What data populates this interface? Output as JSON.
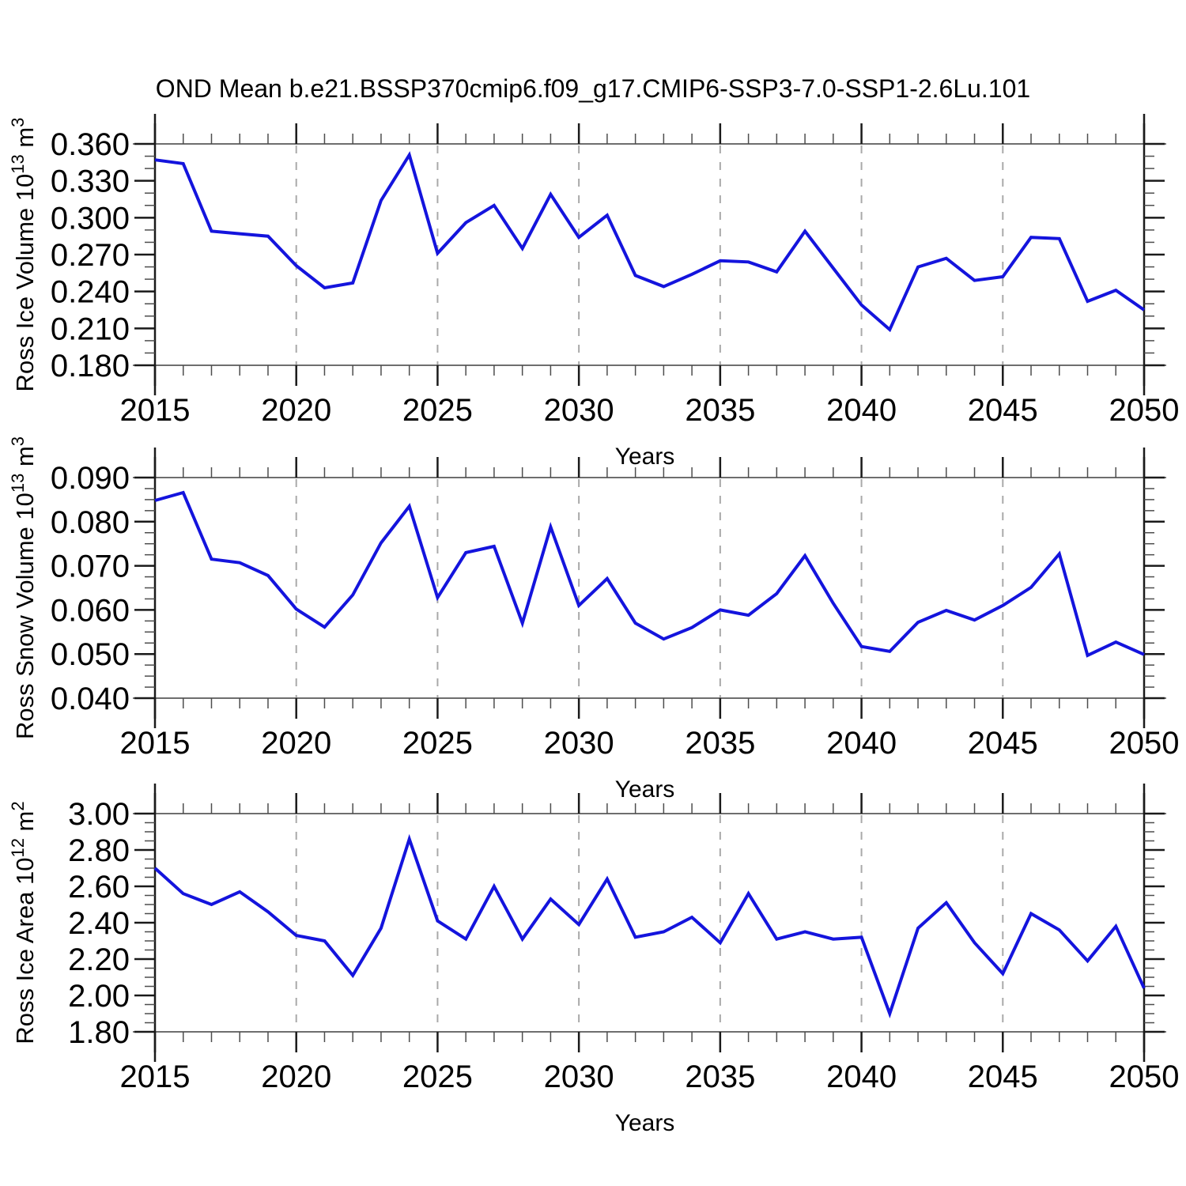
{
  "figure": {
    "title": "OND Mean b.e21.BSSP370cmip6.f09_g17.CMIP6-SSP3-7.0-SSP1-2.6Lu.101"
  },
  "colors": {
    "line": "#1414dd",
    "grid": "#a9a9a9",
    "border": "#6e6e6e",
    "axis": "#1a1a1a",
    "minor_tick": "#4d4d4d",
    "text": "#000000",
    "background": "#ffffff"
  },
  "chart_data": [
    {
      "type": "line",
      "id": "ross-ice-volume",
      "ylabel": "Ross Ice Volume 10¹³ m³",
      "ylabel_parts": [
        {
          "t": "Ross Ice Volume 10"
        },
        {
          "t": "13",
          "sup": true
        },
        {
          "t": " m"
        },
        {
          "t": "3",
          "sup": true
        }
      ],
      "xlabel": "Years",
      "xlim": [
        2015,
        2050
      ],
      "ylim": [
        0.18,
        0.36
      ],
      "ytick_values": [
        0.18,
        0.21,
        0.24,
        0.27,
        0.3,
        0.33,
        0.36
      ],
      "ytick_labels": [
        "0.180",
        "0.210",
        "0.240",
        "0.270",
        "0.300",
        "0.330",
        "0.360"
      ],
      "yminor_step": 0.01,
      "xtick_values": [
        2015,
        2020,
        2025,
        2030,
        2035,
        2040,
        2045,
        2050
      ],
      "xtick_labels": [
        "2015",
        "2020",
        "2025",
        "2030",
        "2035",
        "2040",
        "2045",
        "2050"
      ],
      "xminor_step": 1,
      "grid_years": [
        2020,
        2025,
        2030,
        2035,
        2040,
        2045
      ],
      "x": [
        2015,
        2016,
        2017,
        2018,
        2019,
        2020,
        2021,
        2022,
        2023,
        2024,
        2025,
        2026,
        2027,
        2028,
        2029,
        2030,
        2031,
        2032,
        2033,
        2034,
        2035,
        2036,
        2037,
        2038,
        2039,
        2040,
        2041,
        2042,
        2043,
        2044,
        2045,
        2046,
        2047,
        2048,
        2049,
        2050
      ],
      "values": [
        0.347,
        0.344,
        0.289,
        0.287,
        0.285,
        0.261,
        0.243,
        0.247,
        0.314,
        0.351,
        0.271,
        0.296,
        0.31,
        0.275,
        0.319,
        0.284,
        0.302,
        0.253,
        0.244,
        0.254,
        0.265,
        0.264,
        0.256,
        0.289,
        0.259,
        0.229,
        0.209,
        0.26,
        0.267,
        0.249,
        0.252,
        0.284,
        0.283,
        0.232,
        0.241,
        0.225
      ]
    },
    {
      "type": "line",
      "id": "ross-snow-volume",
      "ylabel": "Ross Snow Volume 10¹³ m³",
      "ylabel_parts": [
        {
          "t": "Ross Snow Volume 10"
        },
        {
          "t": "13",
          "sup": true
        },
        {
          "t": " m"
        },
        {
          "t": "3",
          "sup": true
        }
      ],
      "xlabel": "Years",
      "xlim": [
        2015,
        2050
      ],
      "ylim": [
        0.04,
        0.09
      ],
      "ytick_values": [
        0.04,
        0.05,
        0.06,
        0.07,
        0.08,
        0.09
      ],
      "ytick_labels": [
        "0.040",
        "0.050",
        "0.060",
        "0.070",
        "0.080",
        "0.090"
      ],
      "yminor_step": 0.0025,
      "xtick_values": [
        2015,
        2020,
        2025,
        2030,
        2035,
        2040,
        2045,
        2050
      ],
      "xtick_labels": [
        "2015",
        "2020",
        "2025",
        "2030",
        "2035",
        "2040",
        "2045",
        "2050"
      ],
      "xminor_step": 1,
      "grid_years": [
        2020,
        2025,
        2030,
        2035,
        2040,
        2045
      ],
      "x": [
        2015,
        2016,
        2017,
        2018,
        2019,
        2020,
        2021,
        2022,
        2023,
        2024,
        2025,
        2026,
        2027,
        2028,
        2029,
        2030,
        2031,
        2032,
        2033,
        2034,
        2035,
        2036,
        2037,
        2038,
        2039,
        2040,
        2041,
        2042,
        2043,
        2044,
        2045,
        2046,
        2047,
        2048,
        2049,
        2050
      ],
      "values": [
        0.0848,
        0.0866,
        0.0715,
        0.0707,
        0.0678,
        0.0602,
        0.0561,
        0.0634,
        0.0752,
        0.0835,
        0.0628,
        0.073,
        0.0744,
        0.057,
        0.0788,
        0.061,
        0.0671,
        0.057,
        0.0534,
        0.056,
        0.06,
        0.0588,
        0.0637,
        0.0723,
        0.0615,
        0.0517,
        0.0506,
        0.0572,
        0.0599,
        0.0577,
        0.061,
        0.0651,
        0.0727,
        0.0497,
        0.0527,
        0.0499
      ]
    },
    {
      "type": "line",
      "id": "ross-ice-area",
      "ylabel": "Ross Ice Area 10¹² m²",
      "ylabel_parts": [
        {
          "t": "Ross Ice Area 10"
        },
        {
          "t": "12",
          "sup": true
        },
        {
          "t": " m"
        },
        {
          "t": "2",
          "sup": true
        }
      ],
      "xlabel": "Years",
      "xlim": [
        2015,
        2050
      ],
      "ylim": [
        1.8,
        3.0
      ],
      "ytick_values": [
        1.8,
        2.0,
        2.2,
        2.4,
        2.6,
        2.8,
        3.0
      ],
      "ytick_labels": [
        "1.80",
        "2.00",
        "2.20",
        "2.40",
        "2.60",
        "2.80",
        "3.00"
      ],
      "yminor_step": 0.05,
      "xtick_values": [
        2015,
        2020,
        2025,
        2030,
        2035,
        2040,
        2045,
        2050
      ],
      "xtick_labels": [
        "2015",
        "2020",
        "2025",
        "2030",
        "2035",
        "2040",
        "2045",
        "2050"
      ],
      "xminor_step": 1,
      "grid_years": [
        2020,
        2025,
        2030,
        2035,
        2040,
        2045
      ],
      "x": [
        2015,
        2016,
        2017,
        2018,
        2019,
        2020,
        2021,
        2022,
        2023,
        2024,
        2025,
        2026,
        2027,
        2028,
        2029,
        2030,
        2031,
        2032,
        2033,
        2034,
        2035,
        2036,
        2037,
        2038,
        2039,
        2040,
        2041,
        2042,
        2043,
        2044,
        2045,
        2046,
        2047,
        2048,
        2049,
        2050
      ],
      "values": [
        2.7,
        2.56,
        2.5,
        2.57,
        2.46,
        2.33,
        2.3,
        2.11,
        2.37,
        2.86,
        2.41,
        2.31,
        2.6,
        2.31,
        2.53,
        2.39,
        2.64,
        2.32,
        2.35,
        2.43,
        2.29,
        2.56,
        2.31,
        2.35,
        2.31,
        2.32,
        1.9,
        2.37,
        2.51,
        2.29,
        2.12,
        2.45,
        2.36,
        2.19,
        2.38,
        2.04
      ]
    }
  ]
}
